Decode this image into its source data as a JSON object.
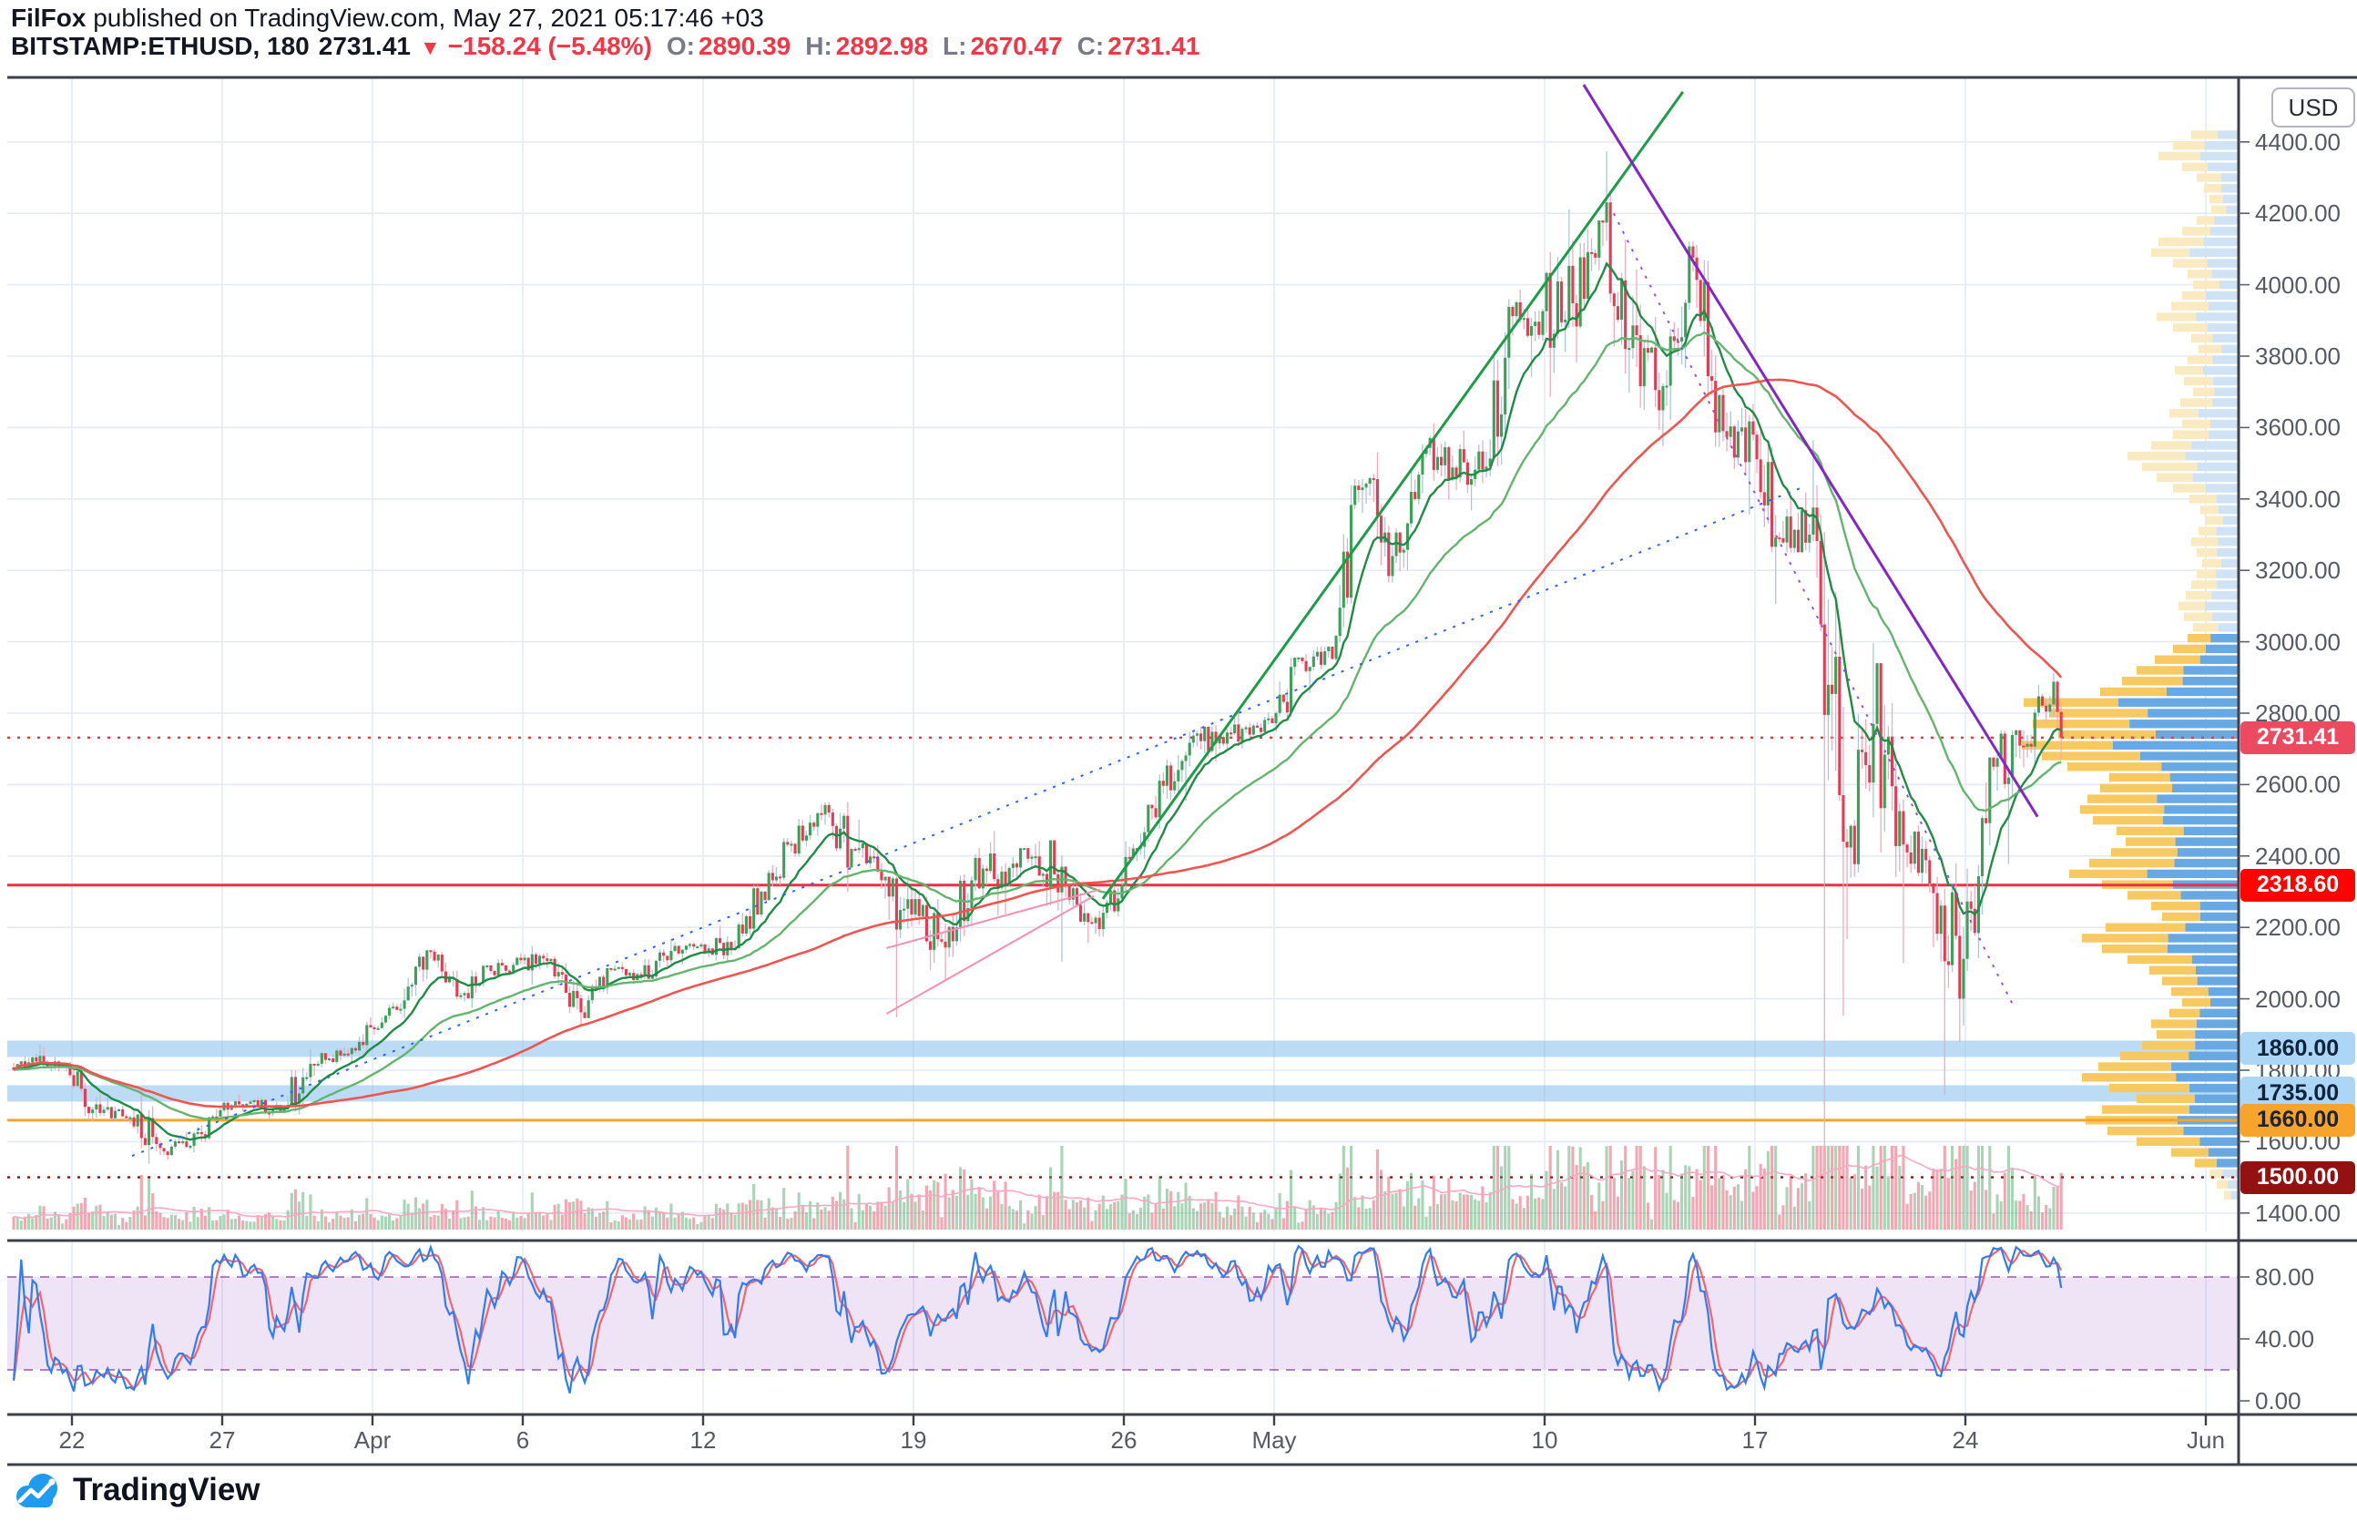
{
  "header": {
    "author": "FilFox",
    "rest": " published on TradingView.com, May 27, 2021 05:17:46 +03"
  },
  "symbol_bar": {
    "symbol": "BITSTAMP:ETHUSD, 180",
    "price": "2731.41",
    "direction": "▼",
    "change": "−158.24 (−5.48%)",
    "ohlc": [
      {
        "label": "O:",
        "value": "2890.39"
      },
      {
        "label": "H:",
        "value": "2892.98"
      },
      {
        "label": "L:",
        "value": "2670.47"
      },
      {
        "label": "C:",
        "value": "2731.41"
      }
    ]
  },
  "price_scale": {
    "currency": "USD",
    "ticks": [
      "4400.00",
      "4200.00",
      "4000.00",
      "3800.00",
      "3600.00",
      "3400.00",
      "3200.00",
      "3000.00",
      "2800.00",
      "2600.00",
      "2400.00",
      "2200.00",
      "2000.00",
      "1800.00",
      "1600.00",
      "1400.00"
    ]
  },
  "time_scale": {
    "labels": [
      {
        "text": "22",
        "day": 0
      },
      {
        "text": "27",
        "day": 5
      },
      {
        "text": "Apr",
        "day": 10
      },
      {
        "text": "6",
        "day": 15
      },
      {
        "text": "12",
        "day": 21
      },
      {
        "text": "19",
        "day": 28
      },
      {
        "text": "26",
        "day": 35
      },
      {
        "text": "May",
        "day": 40
      },
      {
        "text": "10",
        "day": 49
      },
      {
        "text": "17",
        "day": 56
      },
      {
        "text": "24",
        "day": 63
      },
      {
        "text": "Jun",
        "day": 71
      }
    ]
  },
  "oscillator": {
    "name": "Stochastic",
    "ticks": [
      "80.00",
      "40.00",
      "0.00"
    ],
    "upper_band": 80,
    "lower_band": 20
  },
  "levels": [
    {
      "value": 2731.41,
      "label": "2731.41",
      "style": "dotted",
      "line": "#f23645",
      "bg": "#ec4a5f",
      "fg": "#ffffff"
    },
    {
      "value": 2318.6,
      "label": "2318.60",
      "style": "solid",
      "line": "#ef2f42",
      "bg": "#fe0400",
      "fg": "#ffffff"
    },
    {
      "value": 1860,
      "label": "1860.00",
      "style": "band",
      "line": "rgba(133,189,235,0.55)",
      "bg": "#abd6f5",
      "fg": "#10233c"
    },
    {
      "value": 1735,
      "label": "1735.00",
      "style": "band",
      "line": "rgba(133,189,235,0.55)",
      "bg": "#abd6f5",
      "fg": "#10233c"
    },
    {
      "value": 1660,
      "label": "1660.00",
      "style": "solid",
      "line": "#f7a42c",
      "bg": "#f7a42c",
      "fg": "#1c2433"
    },
    {
      "value": 1500,
      "label": "1500.00",
      "style": "dotted",
      "line": "#8e1212",
      "bg": "#941111",
      "fg": "#ffffff"
    }
  ],
  "trendlines": [
    {
      "d1": 2.0,
      "p1": 1560,
      "d2": 57.5,
      "p2": 3430,
      "color": "#2962ff",
      "w": 2,
      "dash": "3 8"
    },
    {
      "d1": 34.3,
      "p1": 2280,
      "d2": 53.6,
      "p2": 4540,
      "color": "#1d9d48",
      "w": 3,
      "dash": ""
    },
    {
      "d1": 50.3,
      "p1": 4560,
      "d2": 65.4,
      "p2": 2510,
      "color": "#8325c9",
      "w": 3,
      "dash": ""
    },
    {
      "d1": 51.3,
      "p1": 4200,
      "d2": 64.6,
      "p2": 1980,
      "color": "#9b4fd6",
      "w": 2,
      "dash": "3 8"
    },
    {
      "d1": 27.1,
      "p1": 1958,
      "d2": 34.0,
      "p2": 2288,
      "color": "#f48fb1",
      "w": 2,
      "dash": ""
    },
    {
      "d1": 27.1,
      "p1": 2142,
      "d2": 34.2,
      "p2": 2306,
      "color": "#f48fb1",
      "w": 2,
      "dash": ""
    }
  ],
  "chart_data": {
    "type": "candlestick",
    "title": "BITSTAMP:ETHUSD 180-minute chart",
    "symbol": "ETH/USD",
    "interval_minutes": 180,
    "start_date": "2021-03-20",
    "ylim": [
      1349,
      4644
    ],
    "daily_ohlc": [
      [
        1808,
        1872,
        1798,
        1840
      ],
      [
        1840,
        1866,
        1780,
        1786
      ],
      [
        1786,
        1816,
        1655,
        1680
      ],
      [
        1680,
        1724,
        1650,
        1668
      ],
      [
        1668,
        1742,
        1538,
        1582
      ],
      [
        1582,
        1626,
        1549,
        1588
      ],
      [
        1588,
        1700,
        1570,
        1688
      ],
      [
        1688,
        1732,
        1662,
        1712
      ],
      [
        1712,
        1724,
        1658,
        1686
      ],
      [
        1686,
        1858,
        1676,
        1818
      ],
      [
        1818,
        1862,
        1784,
        1841
      ],
      [
        1841,
        1948,
        1818,
        1920
      ],
      [
        1920,
        1990,
        1900,
        1972
      ],
      [
        1972,
        2136,
        1946,
        2132
      ],
      [
        2132,
        2140,
        1998,
        2010
      ],
      [
        2010,
        2094,
        1974,
        2078
      ],
      [
        2078,
        2128,
        2054,
        2108
      ],
      [
        2108,
        2148,
        2040,
        2112
      ],
      [
        2112,
        2120,
        1928,
        1962
      ],
      [
        1962,
        2086,
        1946,
        2082
      ],
      [
        2082,
        2102,
        2042,
        2064
      ],
      [
        2064,
        2168,
        2056,
        2134
      ],
      [
        2134,
        2158,
        2096,
        2152
      ],
      [
        2152,
        2204,
        2106,
        2138
      ],
      [
        2138,
        2320,
        2134,
        2300
      ],
      [
        2300,
        2450,
        2276,
        2434
      ],
      [
        2434,
        2545,
        2398,
        2516
      ],
      [
        2516,
        2550,
        2300,
        2420
      ],
      [
        2420,
        2502,
        2308,
        2332
      ],
      [
        2332,
        2342,
        1948,
        2236
      ],
      [
        2236,
        2304,
        2080,
        2160
      ],
      [
        2160,
        2348,
        2052,
        2332
      ],
      [
        2332,
        2470,
        2234,
        2356
      ],
      [
        2356,
        2422,
        2238,
        2398
      ],
      [
        2398,
        2444,
        2104,
        2370
      ],
      [
        2370,
        2372,
        2156,
        2212
      ],
      [
        2212,
        2362,
        2174,
        2318
      ],
      [
        2318,
        2544,
        2300,
        2534
      ],
      [
        2534,
        2682,
        2476,
        2666
      ],
      [
        2666,
        2762,
        2554,
        2748
      ],
      [
        2748,
        2800,
        2664,
        2756
      ],
      [
        2756,
        2802,
        2722,
        2772
      ],
      [
        2772,
        2956,
        2748,
        2946
      ],
      [
        2946,
        2988,
        2856,
        2952
      ],
      [
        2952,
        3456,
        2948,
        3432
      ],
      [
        3432,
        3530,
        3166,
        3240
      ],
      [
        3240,
        3554,
        3198,
        3526
      ],
      [
        3526,
        3612,
        3398,
        3488
      ],
      [
        3488,
        3592,
        3368,
        3482
      ],
      [
        3482,
        3960,
        3460,
        3912
      ],
      [
        3912,
        3986,
        3742,
        3926
      ],
      [
        3926,
        4210,
        3686,
        3948
      ],
      [
        3948,
        4180,
        3782,
        4174
      ],
      [
        4174,
        4374,
        3698,
        3886
      ],
      [
        3886,
        4042,
        3548,
        3716
      ],
      [
        3716,
        4122,
        3622,
        4076
      ],
      [
        4076,
        4112,
        3546,
        3590
      ],
      [
        3590,
        3666,
        3356,
        3580
      ],
      [
        3580,
        3590,
        3106,
        3278
      ],
      [
        3278,
        3564,
        3250,
        3376
      ],
      [
        3376,
        3438,
        1952,
        2440,
        1445
      ],
      [
        2440,
        2996,
        2168,
        2770
      ],
      [
        2770,
        2940,
        2100,
        2432
      ],
      [
        2432,
        2486,
        2144,
        2296
      ],
      [
        2296,
        2380,
        1878,
        2112,
        1730
      ],
      [
        2112,
        2676,
        2078,
        2650
      ],
      [
        2650,
        2752,
        2378,
        2706
      ],
      [
        2706,
        2912,
        2648,
        2888
      ],
      [
        2888,
        2893,
        2670,
        2731.41
      ]
    ],
    "volume_profile": {
      "anchor_price_top": 4420,
      "price_step": 30,
      "vivid_range": [
        1540,
        3010
      ],
      "rows": [
        [
          52,
          55
        ],
        [
          72,
          48
        ],
        [
          88,
          52
        ],
        [
          62,
          45
        ],
        [
          46,
          58
        ],
        [
          38,
          50
        ],
        [
          32,
          46
        ],
        [
          30,
          55
        ],
        [
          46,
          42
        ],
        [
          62,
          50
        ],
        [
          88,
          56
        ],
        [
          96,
          44
        ],
        [
          72,
          52
        ],
        [
          56,
          47
        ],
        [
          50,
          58
        ],
        [
          62,
          42
        ],
        [
          74,
          55
        ],
        [
          90,
          48
        ],
        [
          72,
          52
        ],
        [
          52,
          45
        ],
        [
          44,
          57
        ],
        [
          56,
          49
        ],
        [
          70,
          44
        ],
        [
          60,
          53
        ],
        [
          50,
          47
        ],
        [
          64,
          55
        ],
        [
          76,
          42
        ],
        [
          62,
          50
        ],
        [
          72,
          54
        ],
        [
          96,
          46
        ],
        [
          122,
          52
        ],
        [
          106,
          57
        ],
        [
          90,
          44
        ],
        [
          72,
          50
        ],
        [
          54,
          55
        ],
        [
          42,
          47
        ],
        [
          36,
          52
        ],
        [
          44,
          45
        ],
        [
          52,
          56
        ],
        [
          46,
          48
        ],
        [
          40,
          52
        ],
        [
          46,
          46
        ],
        [
          52,
          54
        ],
        [
          58,
          49
        ],
        [
          66,
          44
        ],
        [
          60,
          52
        ],
        [
          50,
          56
        ],
        [
          56,
          45
        ],
        [
          72,
          50
        ],
        [
          92,
          54
        ],
        [
          112,
          46
        ],
        [
          128,
          52
        ],
        [
          152,
          48
        ],
        [
          236,
          44
        ],
        [
          208,
          52
        ],
        [
          226,
          47
        ],
        [
          198,
          54
        ],
        [
          238,
          42
        ],
        [
          216,
          50
        ],
        [
          188,
          55
        ],
        [
          142,
          47
        ],
        [
          152,
          52
        ],
        [
          166,
          46
        ],
        [
          174,
          53
        ],
        [
          160,
          48
        ],
        [
          134,
          55
        ],
        [
          124,
          44
        ],
        [
          140,
          52
        ],
        [
          164,
          57
        ],
        [
          186,
          46
        ],
        [
          150,
          52
        ],
        [
          122,
          48
        ],
        [
          96,
          56
        ],
        [
          84,
          50
        ],
        [
          146,
          60
        ],
        [
          172,
          55
        ],
        [
          150,
          48
        ],
        [
          122,
          58
        ],
        [
          98,
          52
        ],
        [
          84,
          46
        ],
        [
          74,
          55
        ],
        [
          62,
          50
        ],
        [
          76,
          44
        ],
        [
          96,
          52
        ],
        [
          90,
          47
        ],
        [
          106,
          55
        ],
        [
          130,
          58
        ],
        [
          154,
          52
        ],
        [
          172,
          60
        ],
        [
          142,
          62
        ],
        [
          112,
          57
        ],
        [
          150,
          64
        ],
        [
          168,
          60
        ],
        [
          144,
          58
        ],
        [
          112,
          62
        ],
        [
          74,
          55
        ],
        [
          48,
          50
        ],
        [
          32,
          45
        ],
        [
          24,
          52
        ],
        [
          16,
          48
        ]
      ]
    }
  },
  "logo": {
    "text": "TradingView"
  },
  "colors": {
    "up": "#3aa256",
    "down": "#e83a54",
    "up_wick": "#a9c7d8",
    "down_wick": "#f2aab8",
    "ma_fast": "#1e8c45",
    "ma_slow": "#63b56e",
    "ma_red": "#f0544f",
    "grid": "#e4ebf3",
    "border": "#3c4049",
    "axis_text": "#555a64",
    "vp_blue": "#68a9e3",
    "vp_yellow": "#f6c963",
    "vp_blue_pale": "#cfe3f5",
    "vp_yellow_pale": "#faeac2",
    "stoch_k": "#2e7cf6",
    "stoch_d": "#f2656e",
    "osc_band_fill": "rgba(155,80,200,0.16)",
    "osc_band_edge": "#7b1fa2",
    "vol_up": "rgba(61,162,90,0.45)",
    "vol_down": "rgba(232,58,84,0.45)",
    "vol_ma": "#f8a8c0",
    "accent_red": "#f23645",
    "logo_blue": "#1f9bf0",
    "text_dark": "#131722"
  }
}
